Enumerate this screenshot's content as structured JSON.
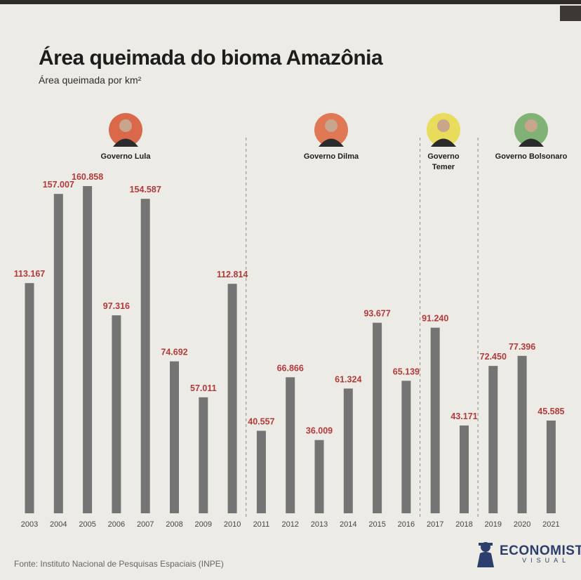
{
  "header": {
    "title": "Área queimada do bioma Amazônia",
    "subtitle": "Área queimada por km²"
  },
  "footer": {
    "source": "Fonte: Instituto Nacional de Pesquisas Espaciais (INPE)",
    "brand_name": "ECONOMISTA",
    "brand_sub": "VISUAL"
  },
  "governments": [
    {
      "label_lines": [
        "Governo Lula"
      ],
      "photo_ring": "#d9694a",
      "start_year": "2003",
      "end_year": "2010"
    },
    {
      "label_lines": [
        "Governo Dilma"
      ],
      "photo_ring": "#e07856",
      "start_year": "2011",
      "end_year": "2016"
    },
    {
      "label_lines": [
        "Governo",
        "Temer"
      ],
      "photo_ring": "#e9dc5a",
      "start_year": "2016",
      "end_year": "2018"
    },
    {
      "label_lines": [
        "Governo Bolsonaro"
      ],
      "photo_ring": "#7fb274",
      "start_year": "2019",
      "end_year": "2021"
    }
  ],
  "colors": {
    "bar": "#747474",
    "value_label": "#b33a3a",
    "divider": "#8a8a8a"
  },
  "chart_data": {
    "type": "bar",
    "title": "Área queimada do bioma Amazônia",
    "subtitle": "Área queimada por km²",
    "categories": [
      "2003",
      "2004",
      "2005",
      "2006",
      "2007",
      "2008",
      "2009",
      "2010",
      "2011",
      "2012",
      "2013",
      "2014",
      "2015",
      "2016",
      "2017",
      "2018",
      "2019",
      "2020",
      "2021"
    ],
    "values": [
      113167,
      157007,
      160858,
      97316,
      154587,
      74692,
      57011,
      112814,
      40557,
      66866,
      36009,
      61324,
      93677,
      65139,
      91240,
      43171,
      72450,
      77396,
      45585
    ],
    "value_labels": [
      "113.167",
      "157.007",
      "160.858",
      "97.316",
      "154.587",
      "74.692",
      "57.011",
      "112.814",
      "40.557",
      "66.866",
      "36.009",
      "61.324",
      "93.677",
      "65.139",
      "91.240",
      "43.171",
      "72.450",
      "77.396",
      "45.585"
    ],
    "ylim": [
      0,
      160858
    ],
    "grid": false,
    "legend": "none"
  }
}
